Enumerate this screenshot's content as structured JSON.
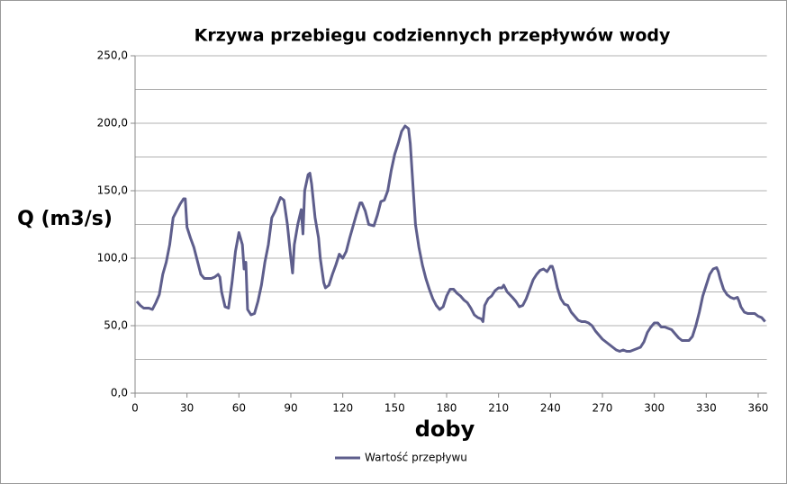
{
  "chart_data": {
    "type": "line",
    "title": "Krzywa przebiegu codziennych przepływów wody",
    "x_label": "doby",
    "y_label": "Q (m3/s)",
    "xlim": [
      0,
      365
    ],
    "xticks": [
      0,
      30,
      60,
      90,
      120,
      150,
      180,
      210,
      240,
      270,
      300,
      330,
      360
    ],
    "ylim": [
      0,
      250
    ],
    "yticks": [
      {
        "value": 0,
        "label": "0,0"
      },
      {
        "value": 50,
        "label": "50,0"
      },
      {
        "value": 100,
        "label": "100,0"
      },
      {
        "value": 150,
        "label": "150,0"
      },
      {
        "value": 200,
        "label": "200,0"
      },
      {
        "value": 250,
        "label": "250,0"
      }
    ],
    "ygrid_minor": [
      25,
      75,
      125,
      175,
      225
    ],
    "grid": true,
    "legend": "bottom",
    "series": [
      {
        "name": "Wartość przepływu",
        "color": "#5e5e8c",
        "x": [
          1,
          3,
          5,
          8,
          10,
          12,
          14,
          16,
          18,
          20,
          22,
          24,
          26,
          28,
          29,
          30,
          32,
          34,
          36,
          38,
          40,
          44,
          46,
          48,
          49,
          50,
          52,
          54,
          56,
          58,
          60,
          62,
          63,
          64,
          65,
          67,
          69,
          71,
          73,
          75,
          77,
          79,
          81,
          84,
          86,
          88,
          90,
          91,
          92,
          94,
          96,
          97,
          98,
          100,
          101,
          102,
          104,
          106,
          107,
          109,
          110,
          112,
          114,
          116,
          118,
          120,
          122,
          124,
          126,
          128,
          130,
          131,
          133,
          135,
          138,
          140,
          142,
          144,
          146,
          148,
          150,
          152,
          154,
          156,
          158,
          159,
          160,
          161,
          162,
          164,
          166,
          168,
          170,
          172,
          174,
          176,
          178,
          180,
          182,
          184,
          186,
          188,
          190,
          192,
          194,
          196,
          198,
          200,
          201,
          202,
          204,
          206,
          208,
          210,
          212,
          213,
          215,
          218,
          220,
          222,
          224,
          226,
          228,
          230,
          232,
          234,
          236,
          238,
          240,
          241,
          242,
          244,
          246,
          248,
          250,
          252,
          254,
          256,
          258,
          260,
          262,
          264,
          266,
          268,
          270,
          272,
          274,
          276,
          278,
          280,
          282,
          284,
          286,
          288,
          290,
          292,
          294,
          296,
          298,
          300,
          302,
          304,
          306,
          308,
          310,
          312,
          314,
          316,
          318,
          320,
          322,
          324,
          326,
          328,
          330,
          332,
          334,
          336,
          337,
          338,
          340,
          342,
          344,
          346,
          348,
          349,
          350,
          352,
          354,
          356,
          358,
          360,
          362,
          364
        ],
        "values": [
          68,
          65,
          63,
          63,
          62,
          67,
          73,
          88,
          97,
          110,
          130,
          135,
          140,
          144,
          144,
          123,
          115,
          108,
          98,
          88,
          85,
          85,
          86,
          88,
          86,
          75,
          64,
          63,
          82,
          105,
          119,
          110,
          92,
          97,
          62,
          58,
          59,
          68,
          80,
          97,
          110,
          130,
          135,
          145,
          143,
          125,
          100,
          89,
          110,
          125,
          136,
          118,
          150,
          162,
          163,
          155,
          130,
          115,
          100,
          82,
          78,
          80,
          88,
          95,
          103,
          100,
          105,
          115,
          124,
          133,
          141,
          141,
          135,
          125,
          124,
          132,
          142,
          143,
          150,
          165,
          177,
          185,
          194,
          198,
          196,
          185,
          165,
          145,
          125,
          108,
          95,
          85,
          77,
          70,
          65,
          62,
          64,
          72,
          77,
          77,
          74,
          72,
          69,
          67,
          63,
          58,
          56,
          55,
          53,
          65,
          70,
          72,
          76,
          78,
          78,
          80,
          75,
          71,
          68,
          64,
          65,
          70,
          77,
          84,
          88,
          91,
          92,
          90,
          94,
          94,
          90,
          78,
          70,
          66,
          65,
          60,
          57,
          54,
          53,
          53,
          52,
          50,
          46,
          43,
          40,
          38,
          36,
          34,
          32,
          31,
          32,
          31,
          31,
          32,
          33,
          34,
          38,
          45,
          49,
          52,
          52,
          49,
          49,
          48,
          47,
          44,
          41,
          39,
          39,
          39,
          42,
          50,
          60,
          72,
          80,
          88,
          92,
          93,
          90,
          85,
          77,
          73,
          71,
          70,
          71,
          68,
          64,
          60,
          59,
          59,
          59,
          57,
          56,
          53
        ]
      }
    ]
  }
}
